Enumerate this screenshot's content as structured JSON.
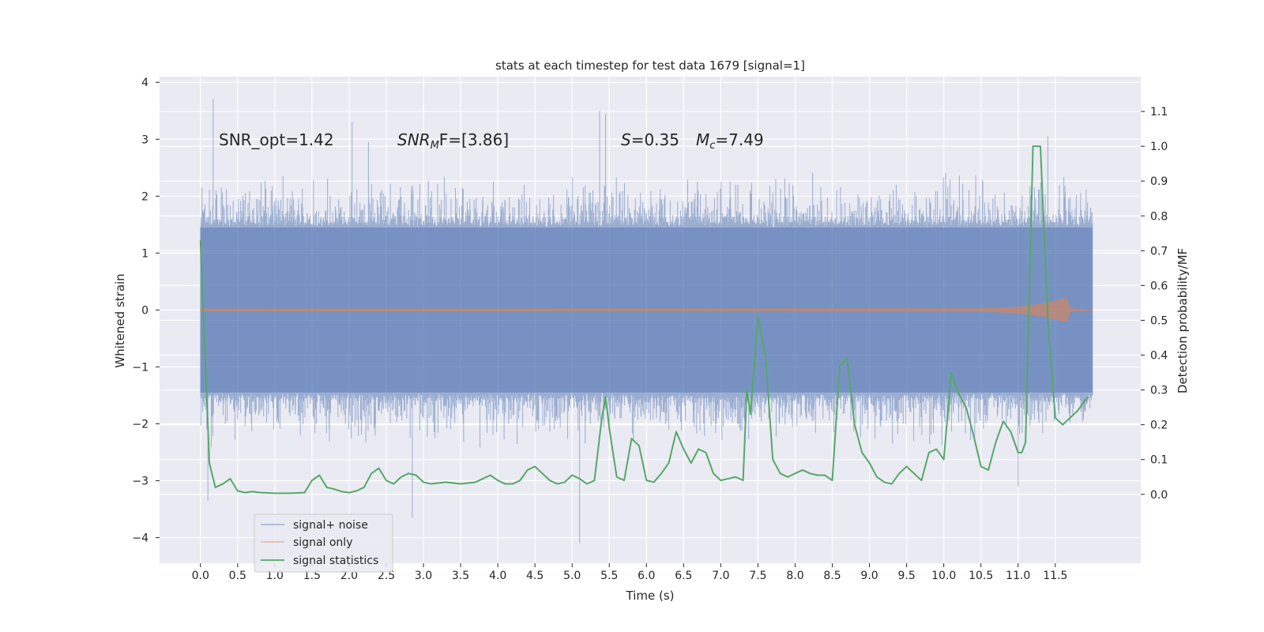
{
  "chart_data": {
    "type": "line",
    "title": "stats at each timestep for test data 1679 [signal=1]",
    "xlabel": "Time (s)",
    "ylabel": "Whitened strain",
    "y2label": "Detection probability/MF",
    "xlim": [
      -0.55,
      12.65
    ],
    "ylim": [
      -4.45,
      4.1
    ],
    "y2lim": [
      -0.198,
      1.2
    ],
    "x_ticks": [
      "0.0",
      "0.5",
      "1.0",
      "1.5",
      "2.0",
      "2.5",
      "3.0",
      "3.5",
      "4.0",
      "4.5",
      "5.0",
      "5.5",
      "6.0",
      "6.5",
      "7.0",
      "7.5",
      "8.0",
      "8.5",
      "9.0",
      "9.5",
      "10.0",
      "10.5",
      "11.0",
      "11.5"
    ],
    "y_ticks": [
      "4",
      "3",
      "2",
      "1",
      "0",
      "−1",
      "−2",
      "−3",
      "−4"
    ],
    "y2_ticks": [
      "0.0",
      "0.1",
      "0.2",
      "0.3",
      "0.4",
      "0.5",
      "0.6",
      "0.7",
      "0.8",
      "0.9",
      "1.0",
      "1.1"
    ],
    "grid": true,
    "legend_position": "lower-left",
    "annotations": {
      "snr_opt": "SNR_opt=1.42",
      "snr_mf_label": "SNR",
      "snr_mf_sub": "M",
      "snr_mf_rest": "F=[3.86]",
      "s_label": "S",
      "s_value": "=0.35",
      "mc_label": "M",
      "mc_sub": "c",
      "mc_value": "=7.49"
    },
    "colors": {
      "noise": "#4c72b0",
      "signal": "#dd8452",
      "stats": "#55a868",
      "axes_bg": "#eaeaf2",
      "grid": "#ffffff"
    },
    "series": [
      {
        "name": "signal+ noise",
        "t_range": [
          0.0,
          12.0
        ],
        "band_lower": -1.45,
        "band_upper": 1.45,
        "spike_maxima": [
          3.7,
          3.5,
          3.45,
          3.3,
          3.05,
          2.95
        ],
        "spike_minima": [
          -3.35,
          -3.65,
          -4.1,
          -3.1
        ],
        "spike_maxima_t": [
          0.17,
          5.37,
          5.45,
          2.04,
          11.4,
          2.26
        ],
        "spike_minima_t": [
          0.1,
          2.85,
          5.1,
          11.0
        ]
      },
      {
        "name": "signal only",
        "t": [
          0.0,
          10.5,
          11.0,
          11.3,
          11.5,
          11.65,
          11.7,
          12.0
        ],
        "amplitude": [
          0.015,
          0.02,
          0.05,
          0.1,
          0.16,
          0.2,
          0.02,
          0.0
        ]
      },
      {
        "name": "signal statistics",
        "t": [
          0.0,
          0.12,
          0.2,
          0.3,
          0.4,
          0.5,
          0.6,
          0.7,
          0.8,
          1.0,
          1.2,
          1.4,
          1.5,
          1.6,
          1.7,
          1.8,
          1.9,
          2.0,
          2.1,
          2.2,
          2.3,
          2.4,
          2.5,
          2.6,
          2.7,
          2.8,
          2.9,
          3.0,
          3.1,
          3.3,
          3.5,
          3.7,
          3.8,
          3.9,
          4.0,
          4.1,
          4.2,
          4.3,
          4.4,
          4.5,
          4.6,
          4.7,
          4.8,
          4.9,
          5.0,
          5.1,
          5.2,
          5.3,
          5.4,
          5.45,
          5.5,
          5.6,
          5.7,
          5.8,
          5.9,
          6.0,
          6.1,
          6.2,
          6.3,
          6.4,
          6.5,
          6.6,
          6.7,
          6.8,
          6.9,
          7.0,
          7.1,
          7.2,
          7.3,
          7.35,
          7.4,
          7.5,
          7.6,
          7.7,
          7.8,
          7.9,
          8.0,
          8.1,
          8.2,
          8.3,
          8.4,
          8.5,
          8.6,
          8.7,
          8.8,
          8.9,
          9.0,
          9.1,
          9.2,
          9.3,
          9.4,
          9.5,
          9.6,
          9.7,
          9.8,
          9.9,
          10.0,
          10.1,
          10.2,
          10.3,
          10.4,
          10.5,
          10.6,
          10.7,
          10.8,
          10.9,
          11.0,
          11.05,
          11.1,
          11.2,
          11.3,
          11.4,
          11.5,
          11.6,
          11.7,
          11.8,
          11.9,
          11.95
        ],
        "values": [
          0.73,
          0.09,
          0.02,
          0.03,
          0.045,
          0.01,
          0.005,
          0.008,
          0.005,
          0.003,
          0.003,
          0.005,
          0.04,
          0.055,
          0.02,
          0.015,
          0.008,
          0.005,
          0.01,
          0.02,
          0.06,
          0.075,
          0.04,
          0.03,
          0.05,
          0.06,
          0.055,
          0.035,
          0.03,
          0.035,
          0.03,
          0.035,
          0.045,
          0.055,
          0.04,
          0.03,
          0.03,
          0.04,
          0.07,
          0.08,
          0.06,
          0.04,
          0.03,
          0.035,
          0.055,
          0.045,
          0.03,
          0.04,
          0.22,
          0.28,
          0.19,
          0.05,
          0.04,
          0.16,
          0.14,
          0.04,
          0.035,
          0.06,
          0.09,
          0.18,
          0.13,
          0.09,
          0.13,
          0.12,
          0.06,
          0.04,
          0.045,
          0.05,
          0.04,
          0.3,
          0.23,
          0.51,
          0.4,
          0.1,
          0.06,
          0.05,
          0.06,
          0.07,
          0.06,
          0.055,
          0.055,
          0.04,
          0.37,
          0.39,
          0.2,
          0.12,
          0.09,
          0.05,
          0.035,
          0.03,
          0.06,
          0.08,
          0.06,
          0.04,
          0.12,
          0.13,
          0.1,
          0.35,
          0.29,
          0.25,
          0.17,
          0.08,
          0.07,
          0.15,
          0.21,
          0.18,
          0.12,
          0.12,
          0.15,
          1.0,
          1.0,
          0.5,
          0.22,
          0.2,
          0.22,
          0.24,
          0.27,
          0.28
        ]
      }
    ]
  }
}
